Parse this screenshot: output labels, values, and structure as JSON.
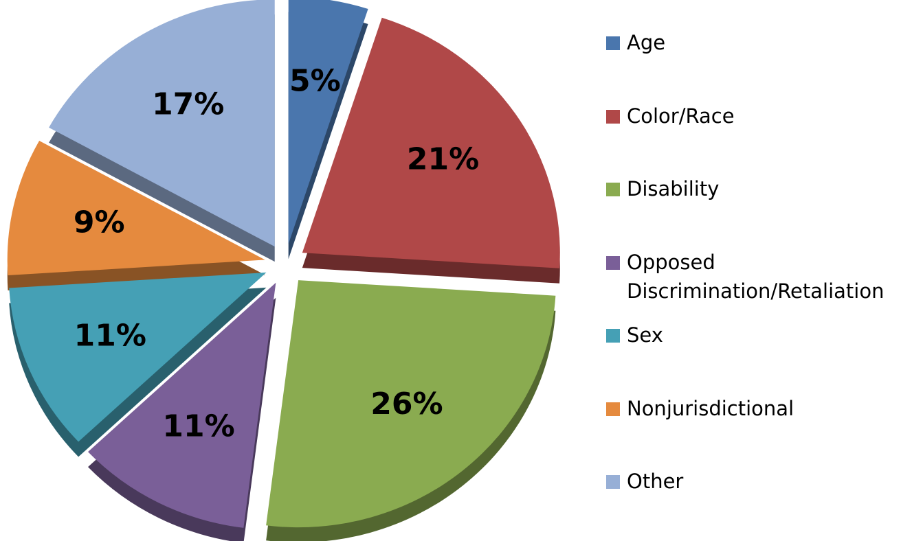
{
  "chart_data": {
    "type": "pie",
    "categories": [
      "Age",
      "Color/Race",
      "Disability",
      "Opposed Discrimination/Retaliation",
      "Sex",
      "Nonjurisdictional",
      "Other"
    ],
    "values": [
      5,
      21,
      26,
      11,
      11,
      9,
      17
    ],
    "value_labels": [
      "5%",
      "21%",
      "26%",
      "11%",
      "11%",
      "9%",
      "17%"
    ],
    "colors": [
      "#4a76ad",
      "#b04848",
      "#8aab50",
      "#7a5f98",
      "#45a0b5",
      "#e58a3e",
      "#97afd6"
    ],
    "legend": "right"
  }
}
